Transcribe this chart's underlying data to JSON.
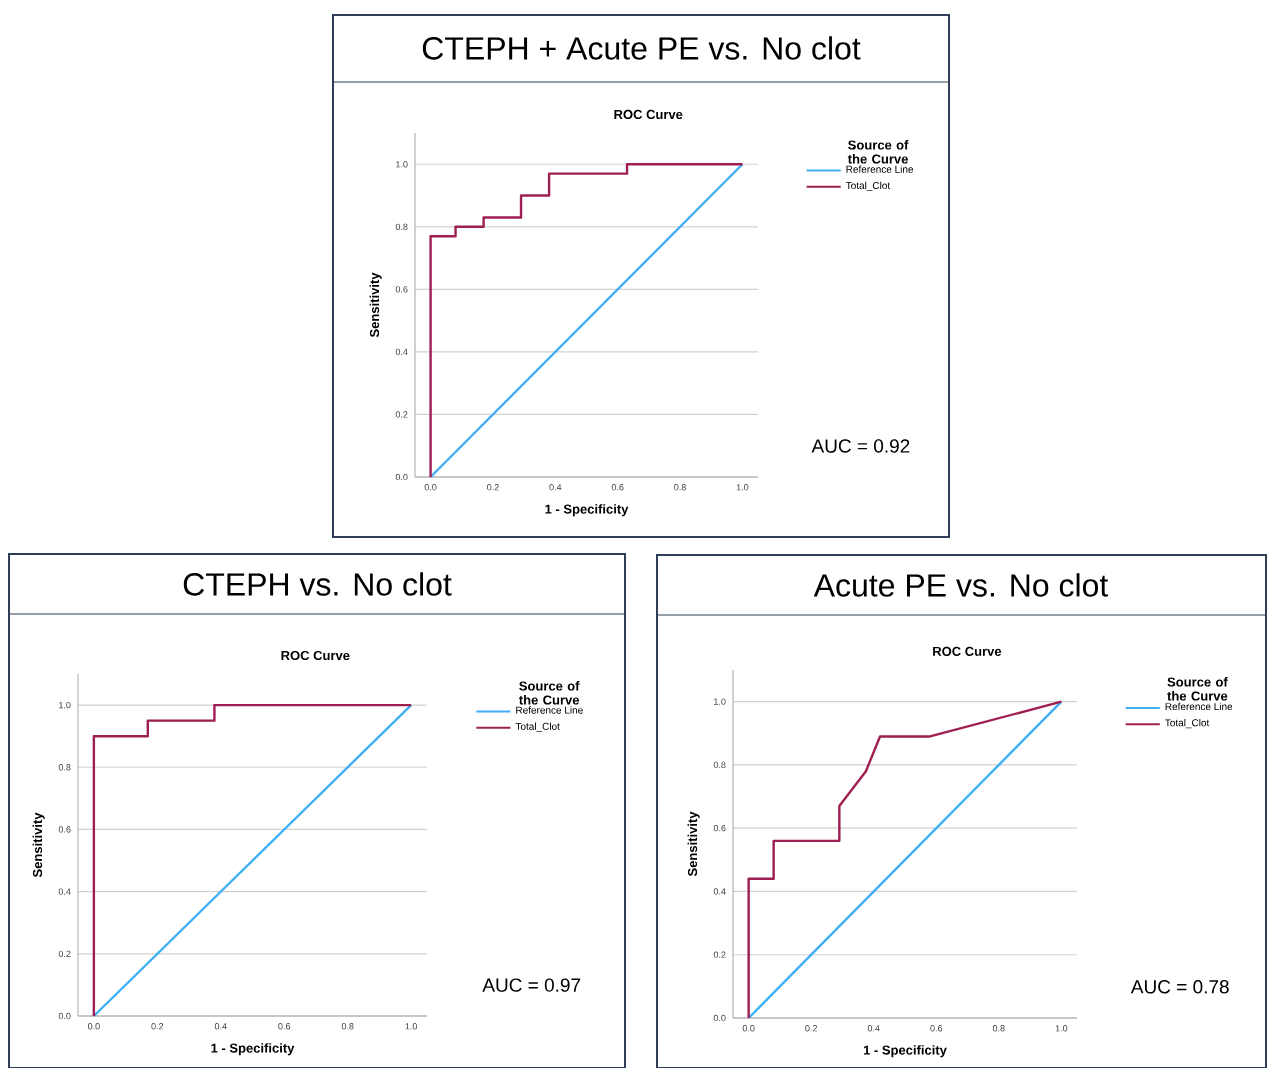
{
  "chart_data": [
    {
      "type": "line",
      "title": "CTEPH + Acute PE vs. No clot",
      "subtitle": "ROC Curve",
      "xlabel": "1 - Specificity",
      "ylabel": "Sensitivity",
      "legend_title": "Source of the Curve",
      "annotations": [
        "AUC = 0.92"
      ],
      "xlim": [
        -0.05,
        1.05
      ],
      "ylim": [
        0,
        1.1
      ],
      "xticks": [
        {
          "value": 0,
          "label": "0.0"
        },
        {
          "value": 0.2,
          "label": "0.2"
        },
        {
          "value": 0.4,
          "label": "0.4"
        },
        {
          "value": 0.6,
          "label": "0.6"
        },
        {
          "value": 0.8,
          "label": "0.8"
        },
        {
          "value": 1,
          "label": "1.0"
        }
      ],
      "yticks": [
        {
          "value": 0,
          "label": "0.0"
        },
        {
          "value": 0.2,
          "label": "0.2"
        },
        {
          "value": 0.4,
          "label": "0.4"
        },
        {
          "value": 0.6,
          "label": "0.6"
        },
        {
          "value": 0.8,
          "label": "0.8"
        },
        {
          "value": 1,
          "label": "1.0"
        }
      ],
      "grid": "y",
      "legend": "right",
      "series": [
        {
          "name": "Reference Line",
          "color": "#3fb0f5",
          "x": [
            0,
            1
          ],
          "values": [
            0,
            1
          ]
        },
        {
          "name": "Total_Clot",
          "color": "#9e1f52",
          "x": [
            0,
            0,
            0.08,
            0.08,
            0.17,
            0.17,
            0.29,
            0.29,
            0.38,
            0.38,
            0.63,
            0.63,
            1
          ],
          "values": [
            0,
            0.77,
            0.77,
            0.8,
            0.8,
            0.83,
            0.83,
            0.9,
            0.9,
            0.97,
            0.97,
            1,
            1
          ]
        }
      ]
    },
    {
      "type": "line",
      "title": "CTEPH vs. No clot",
      "subtitle": "ROC Curve",
      "xlabel": "1 - Specificity",
      "ylabel": "Sensitivity",
      "legend_title": "Source of the Curve",
      "annotations": [
        "AUC = 0.97"
      ],
      "xlim": [
        -0.05,
        1.05
      ],
      "ylim": [
        0,
        1.1
      ],
      "xticks": [
        {
          "value": 0,
          "label": "0.0"
        },
        {
          "value": 0.2,
          "label": "0.2"
        },
        {
          "value": 0.4,
          "label": "0.4"
        },
        {
          "value": 0.6,
          "label": "0.6"
        },
        {
          "value": 0.8,
          "label": "0.8"
        },
        {
          "value": 1,
          "label": "1.0"
        }
      ],
      "yticks": [
        {
          "value": 0,
          "label": "0.0"
        },
        {
          "value": 0.2,
          "label": "0.2"
        },
        {
          "value": 0.4,
          "label": "0.4"
        },
        {
          "value": 0.6,
          "label": "0.6"
        },
        {
          "value": 0.8,
          "label": "0.8"
        },
        {
          "value": 1,
          "label": "1.0"
        }
      ],
      "grid": "y",
      "legend": "right",
      "series": [
        {
          "name": "Reference Line",
          "color": "#3fb0f5",
          "x": [
            0,
            1
          ],
          "values": [
            0,
            1
          ]
        },
        {
          "name": "Total_Clot",
          "color": "#9e1f52",
          "x": [
            0,
            0,
            0.17,
            0.17,
            0.38,
            0.38,
            1
          ],
          "values": [
            0,
            0.9,
            0.9,
            0.95,
            0.95,
            1,
            1
          ]
        }
      ]
    },
    {
      "type": "line",
      "title": "Acute PE vs. No clot",
      "subtitle": "ROC Curve",
      "xlabel": "1 - Specificity",
      "ylabel": "Sensitivity",
      "legend_title": "Source of the Curve",
      "annotations": [
        "AUC = 0.78"
      ],
      "xlim": [
        -0.05,
        1.05
      ],
      "ylim": [
        0,
        1.1
      ],
      "xticks": [
        {
          "value": 0,
          "label": "0.0"
        },
        {
          "value": 0.2,
          "label": "0.2"
        },
        {
          "value": 0.4,
          "label": "0.4"
        },
        {
          "value": 0.6,
          "label": "0.6"
        },
        {
          "value": 0.8,
          "label": "0.8"
        },
        {
          "value": 1,
          "label": "1.0"
        }
      ],
      "yticks": [
        {
          "value": 0,
          "label": "0.0"
        },
        {
          "value": 0.2,
          "label": "0.2"
        },
        {
          "value": 0.4,
          "label": "0.4"
        },
        {
          "value": 0.6,
          "label": "0.6"
        },
        {
          "value": 0.8,
          "label": "0.8"
        },
        {
          "value": 1,
          "label": "1.0"
        }
      ],
      "grid": "y",
      "legend": "right",
      "series": [
        {
          "name": "Reference Line",
          "color": "#3fb0f5",
          "x": [
            0,
            1
          ],
          "values": [
            0,
            1
          ]
        },
        {
          "name": "Total_Clot",
          "color": "#9e1f52",
          "x": [
            0,
            0,
            0.08,
            0.08,
            0.29,
            0.29,
            0.375,
            0.42,
            0.58,
            1
          ],
          "values": [
            0,
            0.44,
            0.44,
            0.56,
            0.56,
            0.67,
            0.78,
            0.89,
            0.89,
            1
          ]
        }
      ]
    }
  ]
}
